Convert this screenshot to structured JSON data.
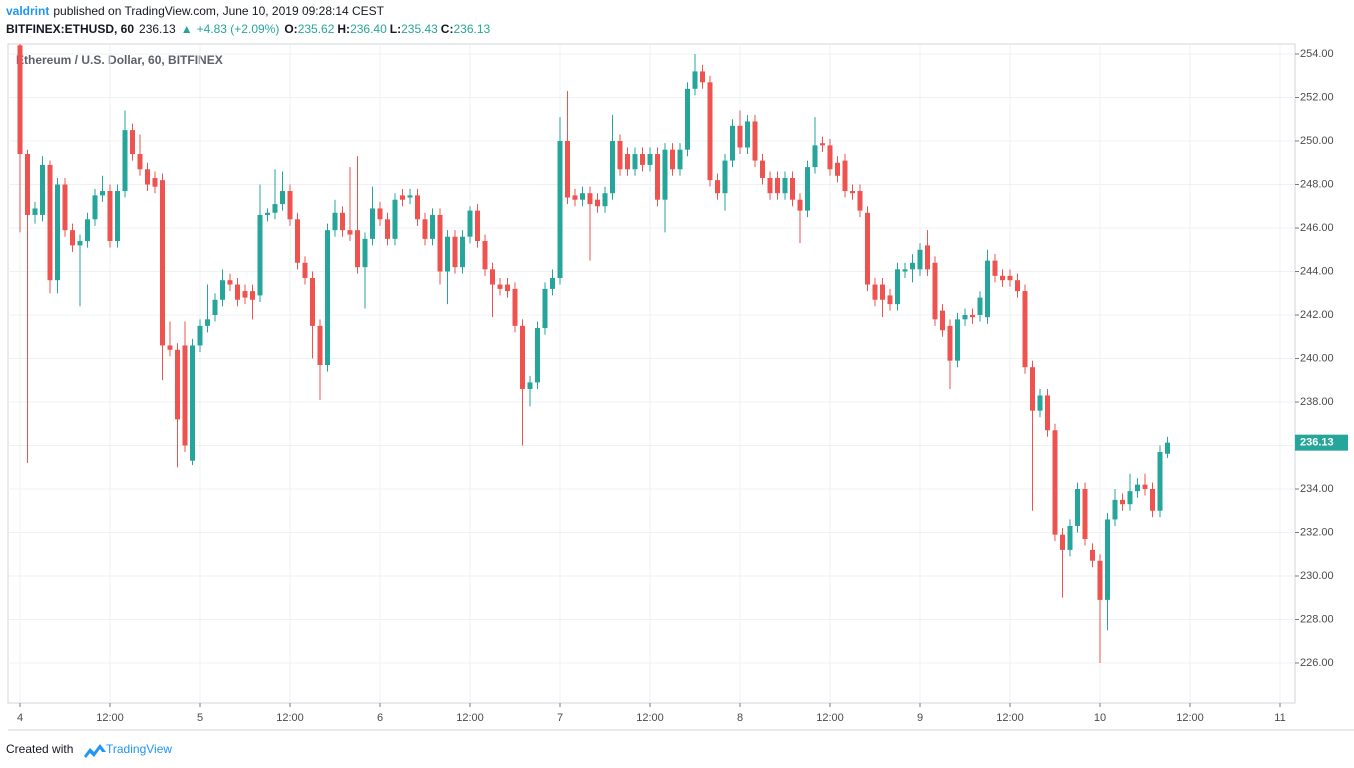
{
  "header": {
    "author": "valdrint",
    "published": "published on TradingView.com, June 10, 2019 09:28:14 CEST",
    "symbol": "BITFINEX:ETHUSD, 60",
    "price": "236.13",
    "arrow": "▲",
    "change": "+4.83 (+2.09%)",
    "ohlc": [
      {
        "label": "O:",
        "value": "235.62"
      },
      {
        "label": "H:",
        "value": "236.40"
      },
      {
        "label": "L:",
        "value": "235.43"
      },
      {
        "label": "C:",
        "value": "236.13"
      }
    ]
  },
  "footer": {
    "text": "Created with",
    "brand": "TradingView"
  },
  "chart_data": {
    "type": "candlestick",
    "title": "Ethereum / U.S. Dollar, 60, BITFINEX",
    "up_color": "#26a69a",
    "down_color": "#ef5350",
    "grid": true,
    "xlim": [
      -1.6,
      170
    ],
    "ylim": [
      224.16,
      254.46
    ],
    "xticks": [
      {
        "value": 0,
        "label": "4"
      },
      {
        "value": 12,
        "label": "12:00"
      },
      {
        "value": 24,
        "label": "5"
      },
      {
        "value": 36,
        "label": "12:00"
      },
      {
        "value": 48,
        "label": "6"
      },
      {
        "value": 60,
        "label": "12:00"
      },
      {
        "value": 72,
        "label": "7"
      },
      {
        "value": 84,
        "label": "12:00"
      },
      {
        "value": 96,
        "label": "8"
      },
      {
        "value": 108,
        "label": "12:00"
      },
      {
        "value": 120,
        "label": "9"
      },
      {
        "value": 132,
        "label": "12:00"
      },
      {
        "value": 144,
        "label": "10"
      },
      {
        "value": 156,
        "label": "12:00"
      },
      {
        "value": 168,
        "label": "11"
      }
    ],
    "yticks": [
      {
        "value": 226,
        "label": "226.00"
      },
      {
        "value": 228,
        "label": "228.00"
      },
      {
        "value": 230,
        "label": "230.00"
      },
      {
        "value": 232,
        "label": "232.00"
      },
      {
        "value": 234,
        "label": "234.00"
      },
      {
        "value": 236,
        "label": "236.00"
      },
      {
        "value": 238,
        "label": "238.00"
      },
      {
        "value": 240,
        "label": "240.00"
      },
      {
        "value": 242,
        "label": "242.00"
      },
      {
        "value": 244,
        "label": "244.00"
      },
      {
        "value": 246,
        "label": "246.00"
      },
      {
        "value": 248,
        "label": "248.00"
      },
      {
        "value": 250,
        "label": "250.00"
      },
      {
        "value": 252,
        "label": "252.00"
      },
      {
        "value": 254,
        "label": "254.00"
      }
    ],
    "x": [
      0,
      1,
      2,
      3,
      4,
      5,
      6,
      7,
      8,
      9,
      10,
      11,
      12,
      13,
      14,
      15,
      16,
      17,
      18,
      19,
      20,
      21,
      22,
      23,
      24,
      25,
      26,
      27,
      28,
      29,
      30,
      31,
      32,
      33,
      34,
      35,
      36,
      37,
      38,
      39,
      40,
      41,
      42,
      43,
      44,
      45,
      46,
      47,
      48,
      49,
      50,
      51,
      52,
      53,
      54,
      55,
      56,
      57,
      58,
      59,
      60,
      61,
      62,
      63,
      64,
      65,
      66,
      67,
      68,
      69,
      70,
      71,
      72,
      73,
      74,
      75,
      76,
      77,
      78,
      79,
      80,
      81,
      82,
      83,
      84,
      85,
      86,
      87,
      88,
      89,
      90,
      91,
      92,
      93,
      94,
      95,
      96,
      97,
      98,
      99,
      100,
      101,
      102,
      103,
      104,
      105,
      106,
      107,
      108,
      109,
      110,
      111,
      112,
      113,
      114,
      115,
      116,
      117,
      118,
      119,
      120,
      121,
      122,
      123,
      124,
      125,
      126,
      127,
      128,
      129,
      130,
      131,
      132,
      133,
      134,
      135,
      136,
      137,
      138,
      139,
      140,
      141,
      142,
      143,
      144,
      145,
      146,
      147,
      148,
      149,
      150,
      151,
      152,
      153
    ],
    "candles": [
      [
        254.4,
        254.6,
        245.8,
        249.4
      ],
      [
        249.4,
        249.6,
        235.2,
        246.6
      ],
      [
        246.6,
        247.2,
        246.2,
        246.9
      ],
      [
        246.6,
        249.3,
        246.3,
        248.9
      ],
      [
        248.9,
        249.1,
        243.0,
        243.6
      ],
      [
        243.6,
        248.3,
        243.0,
        248.0
      ],
      [
        248.0,
        248.3,
        245.6,
        245.9
      ],
      [
        245.9,
        246.2,
        244.9,
        245.2
      ],
      [
        245.2,
        245.7,
        242.4,
        245.4
      ],
      [
        245.4,
        246.7,
        245.1,
        246.4
      ],
      [
        246.4,
        247.8,
        246.1,
        247.5
      ],
      [
        247.5,
        248.4,
        247.2,
        247.7
      ],
      [
        247.7,
        248.0,
        245.1,
        245.4
      ],
      [
        245.4,
        248.0,
        245.1,
        247.7
      ],
      [
        247.7,
        251.4,
        247.4,
        250.5
      ],
      [
        250.5,
        250.8,
        249.1,
        249.4
      ],
      [
        249.4,
        250.3,
        248.4,
        248.7
      ],
      [
        248.7,
        249.0,
        247.7,
        248.0
      ],
      [
        248.3,
        248.6,
        247.6,
        247.9
      ],
      [
        248.2,
        248.5,
        239.0,
        240.6
      ],
      [
        240.6,
        241.7,
        240.1,
        240.4
      ],
      [
        240.4,
        240.7,
        235.0,
        237.2
      ],
      [
        240.6,
        241.7,
        235.7,
        236.0
      ],
      [
        235.3,
        240.9,
        235.1,
        240.6
      ],
      [
        240.6,
        241.8,
        240.3,
        241.5
      ],
      [
        241.5,
        243.4,
        241.2,
        241.8
      ],
      [
        242.0,
        243.0,
        241.7,
        242.7
      ],
      [
        242.7,
        244.1,
        242.4,
        243.6
      ],
      [
        243.6,
        243.9,
        243.1,
        243.4
      ],
      [
        243.4,
        243.7,
        242.4,
        242.7
      ],
      [
        243.1,
        243.4,
        242.5,
        242.8
      ],
      [
        243.1,
        243.4,
        241.8,
        242.7
      ],
      [
        242.9,
        248.0,
        242.6,
        246.6
      ],
      [
        246.6,
        246.9,
        246.3,
        246.7
      ],
      [
        246.7,
        248.7,
        246.4,
        247.1
      ],
      [
        247.1,
        248.6,
        246.8,
        247.7
      ],
      [
        247.7,
        248.0,
        246.1,
        246.4
      ],
      [
        246.4,
        246.7,
        244.1,
        244.4
      ],
      [
        244.4,
        244.7,
        243.4,
        243.7
      ],
      [
        243.7,
        244.0,
        240.0,
        241.5
      ],
      [
        241.5,
        241.8,
        238.1,
        239.7
      ],
      [
        239.7,
        246.2,
        239.4,
        245.9
      ],
      [
        245.9,
        247.3,
        245.6,
        246.7
      ],
      [
        246.7,
        247.0,
        245.6,
        245.9
      ],
      [
        245.9,
        248.8,
        245.4,
        245.7
      ],
      [
        245.9,
        249.3,
        243.9,
        244.2
      ],
      [
        244.2,
        245.8,
        242.3,
        245.5
      ],
      [
        245.5,
        247.9,
        245.2,
        246.9
      ],
      [
        246.9,
        247.2,
        246.1,
        246.4
      ],
      [
        246.4,
        246.7,
        245.2,
        245.5
      ],
      [
        245.5,
        247.6,
        245.2,
        247.3
      ],
      [
        247.5,
        247.8,
        247.0,
        247.3
      ],
      [
        247.4,
        247.8,
        247.1,
        247.5
      ],
      [
        247.5,
        247.8,
        246.1,
        246.4
      ],
      [
        246.4,
        246.7,
        245.2,
        245.5
      ],
      [
        245.5,
        246.9,
        245.2,
        246.6
      ],
      [
        246.6,
        246.9,
        243.4,
        244.0
      ],
      [
        244.0,
        245.9,
        242.5,
        245.6
      ],
      [
        245.6,
        245.9,
        243.9,
        244.2
      ],
      [
        244.2,
        245.9,
        243.9,
        245.6
      ],
      [
        245.6,
        247.0,
        245.3,
        246.8
      ],
      [
        246.8,
        247.1,
        245.1,
        245.4
      ],
      [
        245.4,
        245.7,
        243.8,
        244.1
      ],
      [
        244.1,
        244.4,
        241.9,
        243.4
      ],
      [
        243.4,
        243.7,
        242.9,
        243.2
      ],
      [
        243.4,
        243.7,
        242.8,
        243.1
      ],
      [
        243.2,
        243.5,
        241.2,
        241.5
      ],
      [
        241.5,
        241.8,
        236.0,
        238.6
      ],
      [
        238.6,
        239.2,
        237.8,
        238.9
      ],
      [
        238.9,
        241.7,
        238.6,
        241.4
      ],
      [
        241.4,
        243.5,
        241.1,
        243.2
      ],
      [
        243.2,
        244.1,
        242.9,
        243.7
      ],
      [
        243.7,
        251.1,
        243.4,
        250.0
      ],
      [
        250.0,
        252.3,
        247.1,
        247.4
      ],
      [
        247.5,
        247.8,
        247.0,
        247.3
      ],
      [
        247.3,
        247.9,
        247.0,
        247.6
      ],
      [
        247.6,
        247.9,
        244.5,
        247.1
      ],
      [
        247.3,
        247.6,
        246.7,
        247.0
      ],
      [
        247.0,
        247.9,
        246.7,
        247.6
      ],
      [
        247.6,
        251.2,
        247.3,
        250.0
      ],
      [
        250.0,
        250.3,
        248.4,
        248.7
      ],
      [
        249.4,
        249.7,
        248.4,
        248.7
      ],
      [
        248.7,
        249.7,
        248.4,
        249.4
      ],
      [
        249.4,
        249.7,
        248.6,
        248.9
      ],
      [
        248.9,
        249.7,
        248.6,
        249.4
      ],
      [
        249.4,
        249.7,
        247.0,
        247.3
      ],
      [
        247.3,
        249.9,
        245.8,
        249.6
      ],
      [
        249.6,
        249.9,
        248.4,
        248.7
      ],
      [
        248.7,
        249.9,
        248.4,
        249.6
      ],
      [
        249.6,
        252.7,
        249.3,
        252.4
      ],
      [
        252.4,
        254.0,
        252.1,
        253.2
      ],
      [
        253.2,
        253.5,
        252.4,
        252.7
      ],
      [
        252.7,
        253.0,
        247.9,
        248.2
      ],
      [
        248.2,
        248.5,
        247.3,
        247.6
      ],
      [
        247.6,
        249.4,
        246.8,
        249.1
      ],
      [
        249.1,
        251.0,
        248.8,
        250.7
      ],
      [
        250.7,
        251.4,
        249.4,
        249.7
      ],
      [
        249.7,
        251.2,
        249.4,
        250.9
      ],
      [
        250.9,
        251.2,
        248.8,
        249.1
      ],
      [
        249.1,
        249.4,
        248.0,
        248.3
      ],
      [
        248.3,
        248.6,
        247.3,
        247.6
      ],
      [
        248.3,
        248.6,
        247.3,
        247.6
      ],
      [
        247.6,
        248.6,
        247.3,
        248.3
      ],
      [
        248.3,
        248.6,
        247.0,
        247.3
      ],
      [
        247.3,
        247.6,
        245.3,
        246.8
      ],
      [
        246.8,
        249.1,
        246.5,
        248.8
      ],
      [
        248.8,
        251.1,
        248.5,
        249.8
      ],
      [
        249.9,
        250.2,
        249.5,
        249.8
      ],
      [
        249.8,
        250.1,
        248.4,
        248.7
      ],
      [
        249.0,
        249.3,
        248.1,
        248.4
      ],
      [
        249.1,
        249.4,
        247.4,
        247.7
      ],
      [
        247.7,
        248.0,
        247.3,
        247.6
      ],
      [
        247.7,
        248.0,
        246.5,
        246.8
      ],
      [
        246.7,
        247.0,
        243.1,
        243.4
      ],
      [
        243.4,
        243.7,
        242.4,
        242.7
      ],
      [
        243.4,
        243.7,
        241.9,
        242.7
      ],
      [
        242.9,
        243.2,
        242.2,
        242.5
      ],
      [
        242.5,
        244.4,
        242.2,
        244.1
      ],
      [
        244.0,
        244.4,
        243.7,
        244.1
      ],
      [
        244.1,
        244.8,
        243.5,
        244.4
      ],
      [
        244.1,
        245.3,
        243.8,
        245.0
      ],
      [
        245.2,
        245.9,
        243.8,
        244.1
      ],
      [
        244.4,
        244.7,
        241.5,
        241.8
      ],
      [
        242.2,
        242.5,
        241.0,
        241.3
      ],
      [
        241.5,
        241.8,
        238.6,
        239.9
      ],
      [
        239.9,
        242.1,
        239.6,
        241.8
      ],
      [
        241.8,
        242.3,
        241.5,
        242.0
      ],
      [
        242.0,
        242.3,
        241.6,
        241.9
      ],
      [
        242.0,
        243.1,
        241.7,
        242.8
      ],
      [
        241.9,
        245.0,
        241.6,
        244.5
      ],
      [
        244.5,
        244.8,
        243.5,
        243.8
      ],
      [
        243.8,
        244.1,
        243.3,
        243.6
      ],
      [
        243.8,
        244.1,
        243.3,
        243.6
      ],
      [
        243.6,
        243.9,
        242.8,
        243.1
      ],
      [
        243.1,
        243.4,
        239.3,
        239.6
      ],
      [
        239.6,
        239.9,
        233.0,
        237.6
      ],
      [
        237.6,
        238.6,
        237.3,
        238.3
      ],
      [
        238.3,
        238.6,
        236.4,
        236.7
      ],
      [
        236.7,
        237.0,
        231.6,
        231.9
      ],
      [
        231.9,
        232.2,
        229.0,
        231.2
      ],
      [
        231.2,
        232.6,
        230.9,
        232.3
      ],
      [
        232.3,
        234.3,
        232.0,
        234.0
      ],
      [
        234.0,
        234.3,
        231.4,
        231.7
      ],
      [
        231.2,
        231.5,
        230.4,
        230.7
      ],
      [
        230.7,
        231.0,
        226.0,
        228.9
      ],
      [
        228.9,
        232.9,
        227.5,
        232.6
      ],
      [
        232.6,
        234.0,
        232.3,
        233.5
      ],
      [
        233.5,
        233.8,
        233.0,
        233.3
      ],
      [
        233.3,
        234.7,
        233.0,
        233.9
      ],
      [
        233.9,
        234.5,
        233.6,
        234.2
      ],
      [
        234.2,
        234.7,
        233.7,
        234.0
      ],
      [
        234.0,
        234.3,
        232.7,
        233.0
      ],
      [
        233.0,
        236.0,
        232.7,
        235.7
      ],
      [
        235.62,
        236.4,
        235.43,
        236.13
      ]
    ]
  }
}
